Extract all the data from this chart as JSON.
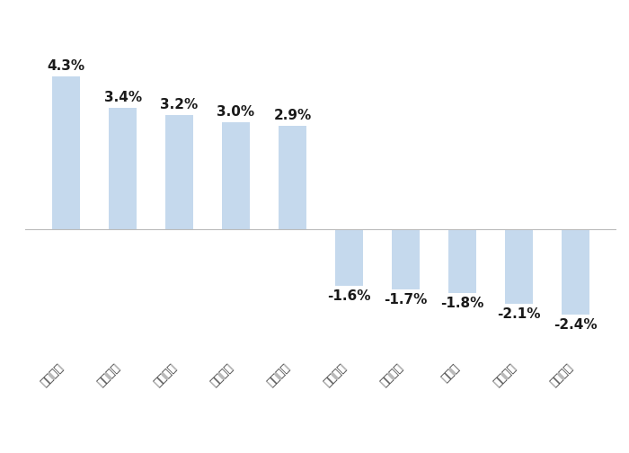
{
  "categories": [
    "佳禁食品",
    "皇氏集团",
    "皇台酒业",
    "日辰股份",
    "双汇发展",
    "安井食品",
    "涔陵榋菜",
    "黑芝麻",
    "重庆啊酒",
    "桃李面包"
  ],
  "values": [
    4.3,
    3.4,
    3.2,
    3.0,
    2.9,
    -1.6,
    -1.7,
    -1.8,
    -2.1,
    -2.4
  ],
  "bar_color": "#c5d9ed",
  "background_color": "#ffffff",
  "ylim": [
    -3.5,
    5.8
  ],
  "label_fontsize": 11,
  "tick_fontsize": 9,
  "label_color": "#1a1a1a",
  "zero_line_color": "#bbbbbb",
  "bar_width": 0.5
}
